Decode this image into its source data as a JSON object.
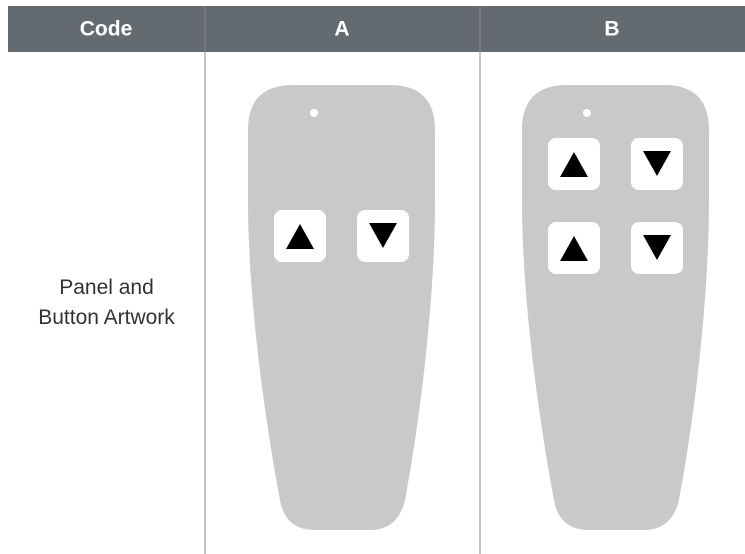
{
  "table": {
    "header": [
      "Code",
      "A",
      "B"
    ],
    "rows": [
      [
        "Panel and Button Artwork"
      ]
    ]
  }
}
